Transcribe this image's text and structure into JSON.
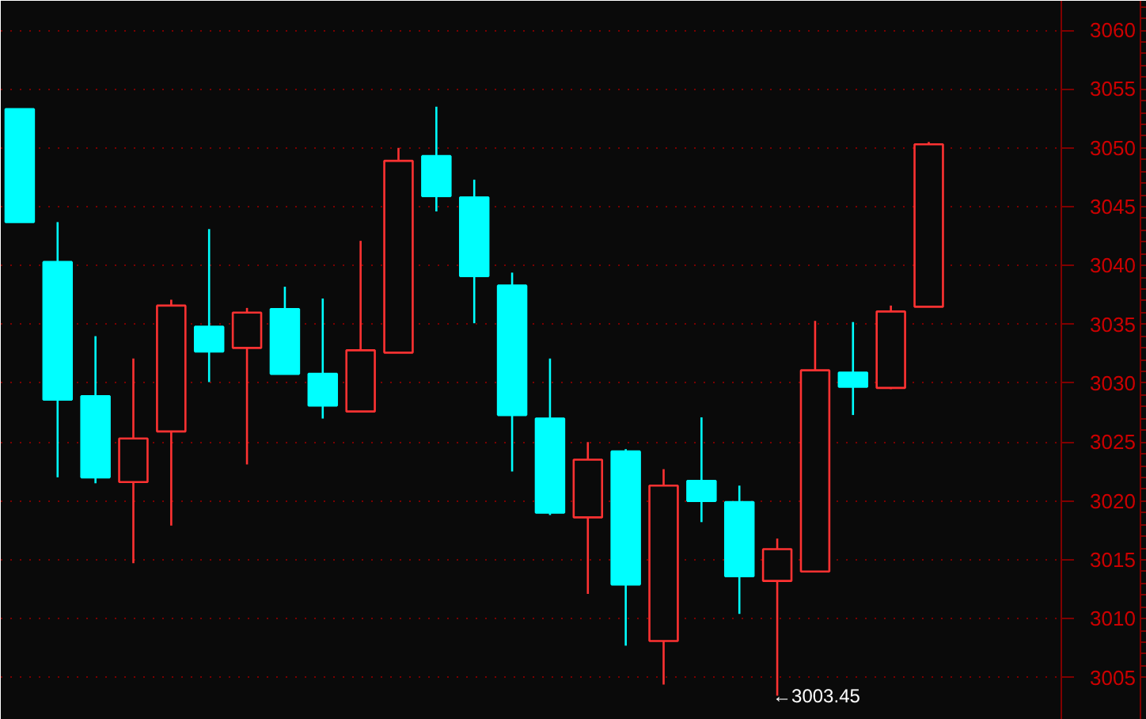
{
  "chart_data": {
    "type": "candlestick",
    "categories": [
      null,
      null,
      null,
      null,
      null,
      null,
      null,
      null,
      null,
      null,
      null,
      null,
      null,
      null,
      null,
      null,
      null,
      null,
      null,
      null,
      null,
      null,
      null,
      null,
      null,
      null,
      null,
      null
    ],
    "ohlc": [
      [
        3053.3,
        3053.3,
        3043.7,
        3043.7
      ],
      [
        3040.3,
        3043.7,
        3022.0,
        3028.6
      ],
      [
        3028.9,
        3034.0,
        3021.5,
        3022.0
      ],
      [
        3021.6,
        3032.1,
        3014.7,
        3025.3
      ],
      [
        3025.9,
        3037.1,
        3017.9,
        3036.6
      ],
      [
        3034.8,
        3043.1,
        3030.1,
        3032.7
      ],
      [
        3033.0,
        3036.4,
        3023.1,
        3036.0
      ],
      [
        3036.3,
        3038.2,
        3030.8,
        3030.8
      ],
      [
        3030.8,
        3037.2,
        3027.0,
        3028.1
      ],
      [
        3027.6,
        3042.1,
        3027.6,
        3032.8
      ],
      [
        3032.6,
        3050.0,
        3032.6,
        3048.9
      ],
      [
        3049.3,
        3053.5,
        3044.6,
        3045.9
      ],
      [
        3045.8,
        3047.3,
        3035.1,
        3039.1
      ],
      [
        3038.3,
        3039.4,
        3022.5,
        3027.3
      ],
      [
        3027.0,
        3032.1,
        3018.8,
        3019.0
      ],
      [
        3018.6,
        3025.0,
        3012.1,
        3023.5
      ],
      [
        3024.2,
        3024.4,
        3007.7,
        3012.9
      ],
      [
        3008.1,
        3022.7,
        3004.4,
        3021.3
      ],
      [
        3021.7,
        3027.1,
        3018.2,
        3020.0
      ],
      [
        3019.9,
        3021.3,
        3010.4,
        3013.6
      ],
      [
        3013.2,
        3016.8,
        3003.45,
        3015.9
      ],
      [
        3014.0,
        3035.3,
        3014.0,
        3031.1
      ],
      [
        3030.9,
        3035.2,
        3027.3,
        3029.7
      ],
      [
        3029.6,
        3036.6,
        3029.5,
        3036.1
      ],
      [
        3036.5,
        3050.5,
        3036.5,
        3050.3
      ],
      null,
      null,
      null
    ],
    "colors": [
      "#00ffff",
      "#00ffff",
      "#00ffff",
      "#ff3232",
      "#ff3232",
      "#00ffff",
      "#ff3232",
      "#00ffff",
      "#00ffff",
      "#ff3232",
      "#ff3232",
      "#00ffff",
      "#00ffff",
      "#00ffff",
      "#00ffff",
      "#ff3232",
      "#00ffff",
      "#ff3232",
      "#00ffff",
      "#00ffff",
      "#ff3232",
      "#ff3232",
      "#00ffff",
      "#ff3232",
      "#ff3232",
      null,
      null,
      null
    ],
    "ylim": [
      3001.4,
      3062.5
    ],
    "yticks": [
      3005,
      3010,
      3015,
      3020,
      3025,
      3030,
      3035,
      3040,
      3045,
      3050,
      3055,
      3060
    ],
    "grid": "y",
    "tick_labels": "y",
    "annotations": [
      "←3003.45"
    ]
  }
}
